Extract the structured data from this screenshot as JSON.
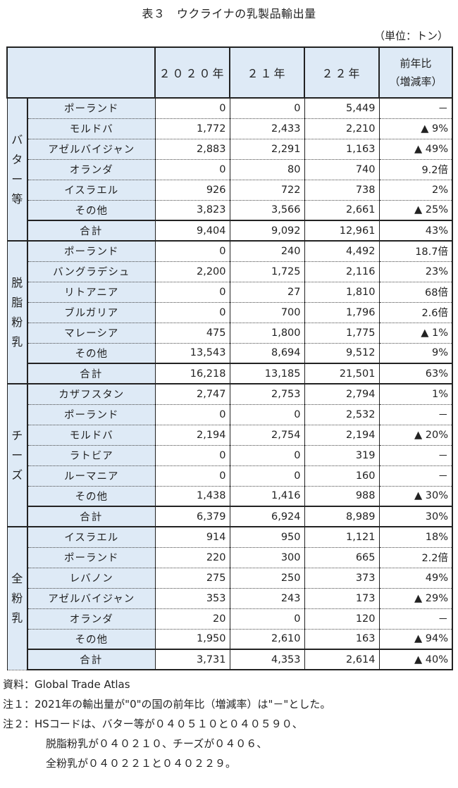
{
  "title": "表３　ウクライナの乳製品輸出量",
  "unit": "（単位：トン）",
  "header": {
    "y2020": "２０２０年",
    "y21": "２１年",
    "y22": "２２年",
    "ratio_line1": "前年比",
    "ratio_line2": "（増減率）"
  },
  "groups": [
    {
      "label": [
        "バ",
        "タ",
        "ー",
        "等"
      ],
      "rows": [
        {
          "name": "ポーランド",
          "v2020": "0",
          "v21": "0",
          "v22": "5,449",
          "ratio": "－"
        },
        {
          "name": "モルドバ",
          "v2020": "1,772",
          "v21": "2,433",
          "v22": "2,210",
          "ratio": "▲ 9%"
        },
        {
          "name": "アゼルバイジャン",
          "v2020": "2,883",
          "v21": "2,291",
          "v22": "1,163",
          "ratio": "▲ 49%"
        },
        {
          "name": "オランダ",
          "v2020": "0",
          "v21": "80",
          "v22": "740",
          "ratio": "9.2倍"
        },
        {
          "name": "イスラエル",
          "v2020": "926",
          "v21": "722",
          "v22": "738",
          "ratio": "2%"
        },
        {
          "name": "その他",
          "v2020": "3,823",
          "v21": "3,566",
          "v22": "2,661",
          "ratio": "▲ 25%"
        }
      ],
      "total": {
        "name": "合計",
        "v2020": "9,404",
        "v21": "9,092",
        "v22": "12,961",
        "ratio": "43%"
      }
    },
    {
      "label": [
        "脱",
        "脂",
        "粉",
        "乳"
      ],
      "rows": [
        {
          "name": "ポーランド",
          "v2020": "0",
          "v21": "240",
          "v22": "4,492",
          "ratio": "18.7倍"
        },
        {
          "name": "バングラデシュ",
          "v2020": "2,200",
          "v21": "1,725",
          "v22": "2,116",
          "ratio": "23%"
        },
        {
          "name": "リトアニア",
          "v2020": "0",
          "v21": "27",
          "v22": "1,810",
          "ratio": "68倍"
        },
        {
          "name": "ブルガリア",
          "v2020": "0",
          "v21": "700",
          "v22": "1,796",
          "ratio": "2.6倍"
        },
        {
          "name": "マレーシア",
          "v2020": "475",
          "v21": "1,800",
          "v22": "1,775",
          "ratio": "▲ 1%"
        },
        {
          "name": "その他",
          "v2020": "13,543",
          "v21": "8,694",
          "v22": "9,512",
          "ratio": "9%"
        }
      ],
      "total": {
        "name": "合計",
        "v2020": "16,218",
        "v21": "13,185",
        "v22": "21,501",
        "ratio": "63%"
      }
    },
    {
      "label": [
        "チ",
        "ー",
        "ズ"
      ],
      "rows": [
        {
          "name": "カザフスタン",
          "v2020": "2,747",
          "v21": "2,753",
          "v22": "2,794",
          "ratio": "1%"
        },
        {
          "name": "ポーランド",
          "v2020": "0",
          "v21": "0",
          "v22": "2,532",
          "ratio": "－"
        },
        {
          "name": "モルドバ",
          "v2020": "2,194",
          "v21": "2,754",
          "v22": "2,194",
          "ratio": "▲ 20%"
        },
        {
          "name": "ラトビア",
          "v2020": "0",
          "v21": "0",
          "v22": "319",
          "ratio": "－"
        },
        {
          "name": "ルーマニア",
          "v2020": "0",
          "v21": "0",
          "v22": "160",
          "ratio": "－"
        },
        {
          "name": "その他",
          "v2020": "1,438",
          "v21": "1,416",
          "v22": "988",
          "ratio": "▲ 30%"
        }
      ],
      "total": {
        "name": "合計",
        "v2020": "6,379",
        "v21": "6,924",
        "v22": "8,989",
        "ratio": "30%"
      }
    },
    {
      "label": [
        "全",
        "粉",
        "乳"
      ],
      "rows": [
        {
          "name": "イスラエル",
          "v2020": "914",
          "v21": "950",
          "v22": "1,121",
          "ratio": "18%"
        },
        {
          "name": "ポーランド",
          "v2020": "220",
          "v21": "300",
          "v22": "665",
          "ratio": "2.2倍"
        },
        {
          "name": "レバノン",
          "v2020": "275",
          "v21": "250",
          "v22": "373",
          "ratio": "49%"
        },
        {
          "name": "アゼルバイジャン",
          "v2020": "353",
          "v21": "243",
          "v22": "173",
          "ratio": "▲ 29%"
        },
        {
          "name": "オランダ",
          "v2020": "20",
          "v21": "0",
          "v22": "120",
          "ratio": "－"
        },
        {
          "name": "その他",
          "v2020": "1,950",
          "v21": "2,610",
          "v22": "163",
          "ratio": "▲ 94%"
        }
      ],
      "total": {
        "name": "合計",
        "v2020": "3,731",
        "v21": "4,353",
        "v22": "2,614",
        "ratio": "▲ 40%"
      }
    }
  ],
  "notes": [
    "資料：Global Trade Atlas",
    "注１：2021年の輸出量が\"0\"の国の前年比（増減率）は\"－\"とした。",
    "注２：HSコードは、バター等が０４０５１０と０４０５９０、",
    "脱脂粉乳が０４０２１０、チーズが０４０６、",
    "全粉乳が０４０２２１と０４０２２９。"
  ]
}
